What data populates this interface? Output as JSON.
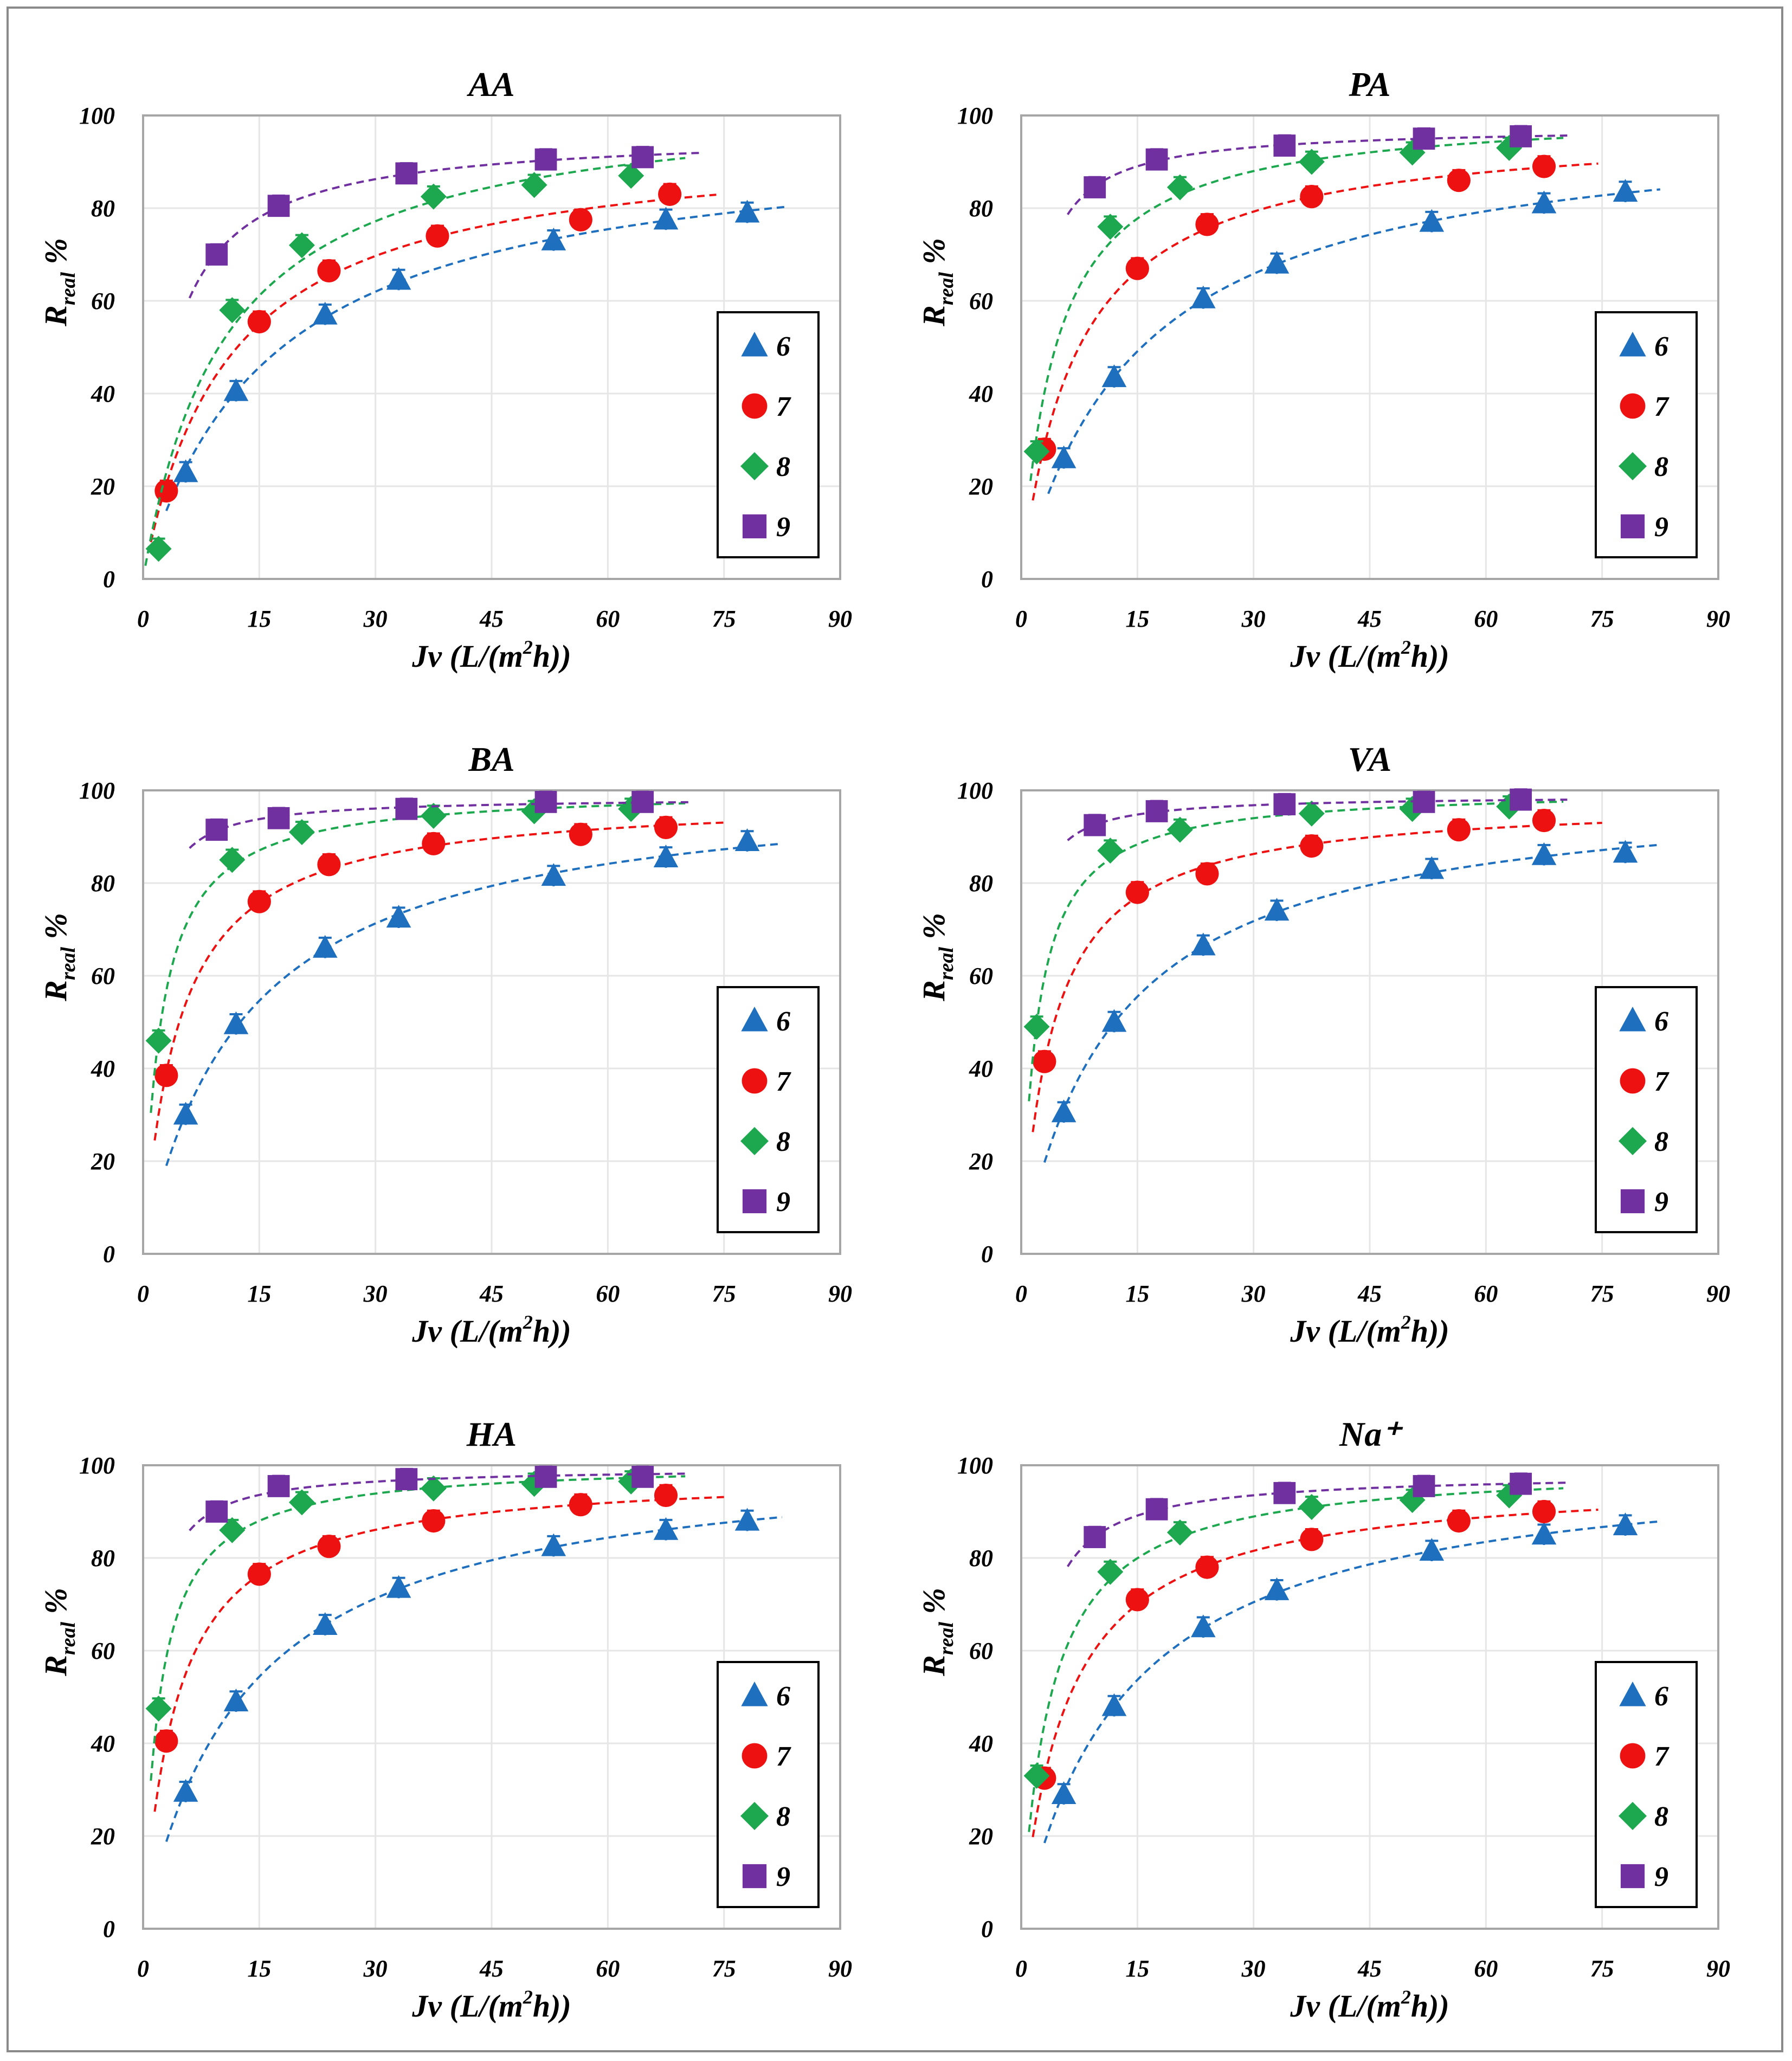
{
  "figure": {
    "x_axis_label": {
      "main": "Jv (L/(m",
      "sup": "2",
      "end": "h))"
    },
    "y_axis_label": {
      "main": "R",
      "sub": "real",
      "end": " %"
    }
  },
  "colors": {
    "6": "#1f6fbf",
    "7": "#ee1111",
    "8": "#1da850",
    "9": "#7030a0"
  },
  "chart_data": [
    {
      "type": "scatter",
      "title": "AA",
      "xlabel": "Jv (L/(m2h))",
      "ylabel": "Rreal %",
      "xlim": [
        0,
        90
      ],
      "ylim": [
        0,
        100
      ],
      "xticks": [
        "0",
        "15",
        "30",
        "45",
        "60",
        "75",
        "90"
      ],
      "yticks": [
        "0",
        "20",
        "40",
        "60",
        "80",
        "100"
      ],
      "legend": [
        "6",
        "7",
        "8",
        "9"
      ],
      "series": [
        {
          "name": "6",
          "marker": "triangle",
          "points": [
            [
              5.5,
              23
            ],
            [
              12,
              40.5
            ],
            [
              23.5,
              57
            ],
            [
              33,
              64.5
            ],
            [
              53,
              73
            ],
            [
              67.5,
              77.5
            ],
            [
              78,
              79
            ]
          ],
          "fit": [
            3,
            83
          ]
        },
        {
          "name": "7",
          "marker": "circle",
          "points": [
            [
              3,
              19
            ],
            [
              15,
              55.5
            ],
            [
              24,
              66.5
            ],
            [
              38,
              74
            ],
            [
              56.5,
              77.5
            ],
            [
              68,
              83
            ]
          ],
          "fit": [
            1,
            74
          ]
        },
        {
          "name": "8",
          "marker": "diamond",
          "points": [
            [
              2,
              6.5
            ],
            [
              11.5,
              58
            ],
            [
              20.5,
              72
            ],
            [
              37.5,
              82.5
            ],
            [
              50.5,
              85
            ],
            [
              63,
              87
            ]
          ],
          "fit": [
            0.3,
            70
          ]
        },
        {
          "name": "9",
          "marker": "square",
          "points": [
            [
              9.5,
              70
            ],
            [
              17.5,
              80.5
            ],
            [
              34,
              87.5
            ],
            [
              52,
              90.5
            ],
            [
              64.5,
              91
            ]
          ],
          "fit": [
            6,
            72
          ]
        }
      ]
    },
    {
      "type": "scatter",
      "title": "PA",
      "xlabel": "Jv (L/(m2h))",
      "ylabel": "Rreal %",
      "xlim": [
        0,
        90
      ],
      "ylim": [
        0,
        100
      ],
      "xticks": [
        "0",
        "15",
        "30",
        "45",
        "60",
        "75",
        "90"
      ],
      "yticks": [
        "0",
        "20",
        "40",
        "60",
        "80",
        "100"
      ],
      "legend": [
        "6",
        "7",
        "8",
        "9"
      ],
      "series": [
        {
          "name": "6",
          "marker": "triangle",
          "points": [
            [
              5.5,
              26
            ],
            [
              12,
              43.5
            ],
            [
              23.5,
              60.5
            ],
            [
              33,
              68
            ],
            [
              53,
              77
            ],
            [
              67.5,
              81
            ],
            [
              78,
              83.5
            ]
          ],
          "fit": [
            3.5,
            82.5
          ]
        },
        {
          "name": "7",
          "marker": "circle",
          "points": [
            [
              3,
              28
            ],
            [
              15,
              67
            ],
            [
              24,
              76.5
            ],
            [
              37.5,
              82.5
            ],
            [
              56.5,
              86
            ],
            [
              67.5,
              89
            ]
          ],
          "fit": [
            1.5,
            74.5
          ]
        },
        {
          "name": "8",
          "marker": "diamond",
          "points": [
            [
              2,
              27.5
            ],
            [
              11.5,
              76
            ],
            [
              20.5,
              84.5
            ],
            [
              37.5,
              90
            ],
            [
              50.5,
              92
            ],
            [
              63,
              93
            ]
          ],
          "fit": [
            1.2,
            70
          ]
        },
        {
          "name": "9",
          "marker": "square",
          "points": [
            [
              9.5,
              84.5
            ],
            [
              17.5,
              90.5
            ],
            [
              34,
              93.5
            ],
            [
              52,
              95
            ],
            [
              64.5,
              95.5
            ]
          ],
          "fit": [
            6,
            70.5
          ]
        }
      ]
    },
    {
      "type": "scatter",
      "title": "BA",
      "xlabel": "Jv (L/(m2h))",
      "ylabel": "Rreal %",
      "xlim": [
        0,
        90
      ],
      "ylim": [
        0,
        100
      ],
      "xticks": [
        "0",
        "15",
        "30",
        "45",
        "60",
        "75",
        "90"
      ],
      "yticks": [
        "0",
        "20",
        "40",
        "60",
        "80",
        "100"
      ],
      "legend": [
        "6",
        "7",
        "8",
        "9"
      ],
      "series": [
        {
          "name": "6",
          "marker": "triangle",
          "points": [
            [
              5.5,
              30
            ],
            [
              12,
              49.5
            ],
            [
              23.5,
              66
            ],
            [
              33,
              72.5
            ],
            [
              53,
              81.5
            ],
            [
              67.5,
              85.5
            ],
            [
              78,
              89
            ]
          ],
          "fit": [
            3,
            82.5
          ]
        },
        {
          "name": "7",
          "marker": "circle",
          "points": [
            [
              3,
              38.5
            ],
            [
              15,
              76
            ],
            [
              24,
              84
            ],
            [
              37.5,
              88.5
            ],
            [
              56.5,
              90.5
            ],
            [
              67.5,
              92
            ]
          ],
          "fit": [
            1.5,
            75
          ]
        },
        {
          "name": "8",
          "marker": "diamond",
          "points": [
            [
              2,
              46
            ],
            [
              11.5,
              85
            ],
            [
              20.5,
              91
            ],
            [
              37.5,
              94.5
            ],
            [
              50.5,
              95.5
            ],
            [
              63,
              96
            ]
          ],
          "fit": [
            1,
            70
          ]
        },
        {
          "name": "9",
          "marker": "square",
          "points": [
            [
              9.5,
              91.5
            ],
            [
              17.5,
              94
            ],
            [
              34,
              96
            ],
            [
              52,
              97.5
            ],
            [
              64.5,
              97.5
            ]
          ],
          "fit": [
            6,
            70.5
          ]
        }
      ]
    },
    {
      "type": "scatter",
      "title": "VA",
      "xlabel": "Jv (L/(m2h))",
      "ylabel": "Rreal %",
      "xlim": [
        0,
        90
      ],
      "ylim": [
        0,
        100
      ],
      "xticks": [
        "0",
        "15",
        "30",
        "45",
        "60",
        "75",
        "90"
      ],
      "yticks": [
        "0",
        "20",
        "40",
        "60",
        "80",
        "100"
      ],
      "legend": [
        "6",
        "7",
        "8",
        "9"
      ],
      "series": [
        {
          "name": "6",
          "marker": "triangle",
          "points": [
            [
              5.5,
              30.5
            ],
            [
              12,
              50
            ],
            [
              23.5,
              66.5
            ],
            [
              33,
              74
            ],
            [
              53,
              83
            ],
            [
              67.5,
              86
            ],
            [
              78,
              86.5
            ]
          ],
          "fit": [
            3,
            82.5
          ]
        },
        {
          "name": "7",
          "marker": "circle",
          "points": [
            [
              3,
              41.5
            ],
            [
              15,
              78
            ],
            [
              24,
              82
            ],
            [
              37.5,
              88
            ],
            [
              56.5,
              91.5
            ],
            [
              67.5,
              93.5
            ]
          ],
          "fit": [
            1.5,
            75
          ]
        },
        {
          "name": "8",
          "marker": "diamond",
          "points": [
            [
              2,
              49
            ],
            [
              11.5,
              87
            ],
            [
              20.5,
              91.5
            ],
            [
              37.5,
              95
            ],
            [
              50.5,
              96
            ],
            [
              63,
              96.5
            ]
          ],
          "fit": [
            1,
            70
          ]
        },
        {
          "name": "9",
          "marker": "square",
          "points": [
            [
              9.5,
              92.5
            ],
            [
              17.5,
              95.5
            ],
            [
              34,
              97
            ],
            [
              52,
              97.5
            ],
            [
              64.5,
              98
            ]
          ],
          "fit": [
            6,
            70.5
          ]
        }
      ]
    },
    {
      "type": "scatter",
      "title": "HA",
      "xlabel": "Jv (L/(m2h))",
      "ylabel": "Rreal %",
      "xlim": [
        0,
        90
      ],
      "ylim": [
        0,
        100
      ],
      "xticks": [
        "0",
        "15",
        "30",
        "45",
        "60",
        "75",
        "90"
      ],
      "yticks": [
        "0",
        "20",
        "40",
        "60",
        "80",
        "100"
      ],
      "legend": [
        "6",
        "7",
        "8",
        "9"
      ],
      "series": [
        {
          "name": "6",
          "marker": "triangle",
          "points": [
            [
              5.5,
              29.5
            ],
            [
              12,
              49
            ],
            [
              23.5,
              65.5
            ],
            [
              33,
              73.5
            ],
            [
              53,
              82.5
            ],
            [
              67.5,
              86
            ],
            [
              78,
              88
            ]
          ],
          "fit": [
            3,
            82.5
          ]
        },
        {
          "name": "7",
          "marker": "circle",
          "points": [
            [
              3,
              40.5
            ],
            [
              15,
              76.5
            ],
            [
              24,
              82.5
            ],
            [
              37.5,
              88
            ],
            [
              56.5,
              91.5
            ],
            [
              67.5,
              93.5
            ]
          ],
          "fit": [
            1.5,
            75
          ]
        },
        {
          "name": "8",
          "marker": "diamond",
          "points": [
            [
              2,
              47.5
            ],
            [
              11.5,
              86
            ],
            [
              20.5,
              92
            ],
            [
              37.5,
              95
            ],
            [
              50.5,
              96
            ],
            [
              63,
              96.5
            ]
          ],
          "fit": [
            1,
            70
          ]
        },
        {
          "name": "9",
          "marker": "square",
          "points": [
            [
              9.5,
              90
            ],
            [
              17.5,
              95.5
            ],
            [
              34,
              97
            ],
            [
              52,
              97.5
            ],
            [
              64.5,
              97.5
            ]
          ],
          "fit": [
            6,
            70.5
          ]
        }
      ]
    },
    {
      "type": "scatter",
      "title": "Na⁺",
      "xlabel": "Jv (L/(m2h))",
      "ylabel": "Rreal %",
      "xlim": [
        0,
        90
      ],
      "ylim": [
        0,
        100
      ],
      "xticks": [
        "0",
        "15",
        "30",
        "45",
        "60",
        "75",
        "90"
      ],
      "yticks": [
        "0",
        "20",
        "40",
        "60",
        "80",
        "100"
      ],
      "legend": [
        "6",
        "7",
        "8",
        "9"
      ],
      "series": [
        {
          "name": "6",
          "marker": "triangle",
          "points": [
            [
              5.5,
              29
            ],
            [
              12,
              48
            ],
            [
              23.5,
              65
            ],
            [
              33,
              73
            ],
            [
              53,
              81.5
            ],
            [
              67.5,
              85
            ],
            [
              78,
              87
            ]
          ],
          "fit": [
            3,
            82.5
          ]
        },
        {
          "name": "7",
          "marker": "circle",
          "points": [
            [
              3,
              32.5
            ],
            [
              15,
              71
            ],
            [
              24,
              78
            ],
            [
              37.5,
              84
            ],
            [
              56.5,
              88
            ],
            [
              67.5,
              90
            ]
          ],
          "fit": [
            1.5,
            74.5
          ]
        },
        {
          "name": "8",
          "marker": "diamond",
          "points": [
            [
              2,
              33
            ],
            [
              11.5,
              77
            ],
            [
              20.5,
              85.5
            ],
            [
              37.5,
              91
            ],
            [
              50.5,
              92.5
            ],
            [
              63,
              93.5
            ]
          ],
          "fit": [
            1,
            70
          ]
        },
        {
          "name": "9",
          "marker": "square",
          "points": [
            [
              9.5,
              84.5
            ],
            [
              17.5,
              90.5
            ],
            [
              34,
              94
            ],
            [
              52,
              95.5
            ],
            [
              64.5,
              96
            ]
          ],
          "fit": [
            6,
            70.5
          ]
        }
      ]
    }
  ]
}
